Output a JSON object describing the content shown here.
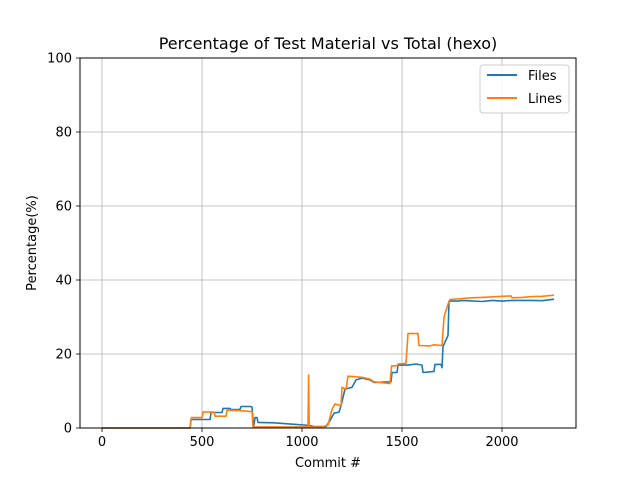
{
  "chart_data": {
    "type": "line",
    "title": "Percentage of Test Material vs Total (hexo)",
    "xlabel": "Commit #",
    "ylabel": "Percentage(%)",
    "xlim": [
      -110,
      2370
    ],
    "ylim": [
      0,
      100
    ],
    "xticks": [
      0,
      500,
      1000,
      1500,
      2000
    ],
    "yticks": [
      0,
      20,
      40,
      60,
      80,
      100
    ],
    "grid": true,
    "legend_position": "top-right",
    "series": [
      {
        "name": "Files",
        "color": "#1f77b4",
        "points": [
          [
            0,
            0
          ],
          [
            440,
            0
          ],
          [
            445,
            2.3
          ],
          [
            540,
            2.3
          ],
          [
            545,
            4.2
          ],
          [
            600,
            4.2
          ],
          [
            605,
            5.3
          ],
          [
            640,
            5.3
          ],
          [
            645,
            5.0
          ],
          [
            690,
            5.0
          ],
          [
            695,
            5.8
          ],
          [
            745,
            5.8
          ],
          [
            750,
            5.6
          ],
          [
            758,
            0.3
          ],
          [
            765,
            2.8
          ],
          [
            775,
            2.8
          ],
          [
            780,
            1.5
          ],
          [
            860,
            1.4
          ],
          [
            960,
            1.0
          ],
          [
            1010,
            0.8
          ],
          [
            1035,
            0.7
          ],
          [
            1060,
            0.4
          ],
          [
            1120,
            0.4
          ],
          [
            1140,
            2.0
          ],
          [
            1160,
            4.0
          ],
          [
            1185,
            4.3
          ],
          [
            1195,
            6.0
          ],
          [
            1215,
            10.5
          ],
          [
            1250,
            11.0
          ],
          [
            1260,
            12.0
          ],
          [
            1270,
            13.0
          ],
          [
            1300,
            13.5
          ],
          [
            1340,
            13.0
          ],
          [
            1360,
            12.3
          ],
          [
            1445,
            12.5
          ],
          [
            1450,
            15.0
          ],
          [
            1475,
            15.0
          ],
          [
            1480,
            17.0
          ],
          [
            1530,
            17.0
          ],
          [
            1570,
            17.3
          ],
          [
            1600,
            17.0
          ],
          [
            1605,
            15.0
          ],
          [
            1660,
            15.3
          ],
          [
            1665,
            17.2
          ],
          [
            1695,
            17.2
          ],
          [
            1700,
            16.3
          ],
          [
            1705,
            22.0
          ],
          [
            1730,
            25.0
          ],
          [
            1735,
            34.3
          ],
          [
            1780,
            34.3
          ],
          [
            1800,
            34.5
          ],
          [
            1900,
            34.2
          ],
          [
            1950,
            34.5
          ],
          [
            2000,
            34.3
          ],
          [
            2050,
            34.5
          ],
          [
            2150,
            34.5
          ],
          [
            2200,
            34.4
          ],
          [
            2260,
            34.8
          ]
        ]
      },
      {
        "name": "Lines",
        "color": "#ff7f0e",
        "points": [
          [
            0,
            0
          ],
          [
            440,
            0
          ],
          [
            447,
            2.8
          ],
          [
            500,
            2.8
          ],
          [
            505,
            4.3
          ],
          [
            560,
            4.3
          ],
          [
            565,
            3.2
          ],
          [
            620,
            3.2
          ],
          [
            625,
            4.8
          ],
          [
            690,
            4.7
          ],
          [
            750,
            4.4
          ],
          [
            755,
            0.3
          ],
          [
            860,
            0.3
          ],
          [
            960,
            0.3
          ],
          [
            1030,
            0.3
          ],
          [
            1033,
            14.3
          ],
          [
            1036,
            0.3
          ],
          [
            1100,
            0.3
          ],
          [
            1130,
            0.8
          ],
          [
            1150,
            5.0
          ],
          [
            1165,
            6.5
          ],
          [
            1195,
            6.0
          ],
          [
            1200,
            11.0
          ],
          [
            1220,
            10.5
          ],
          [
            1230,
            14.0
          ],
          [
            1300,
            13.7
          ],
          [
            1340,
            13.2
          ],
          [
            1360,
            12.5
          ],
          [
            1440,
            12.0
          ],
          [
            1448,
            16.8
          ],
          [
            1475,
            16.8
          ],
          [
            1480,
            17.3
          ],
          [
            1520,
            17.5
          ],
          [
            1530,
            25.5
          ],
          [
            1580,
            25.5
          ],
          [
            1585,
            22.3
          ],
          [
            1640,
            22.2
          ],
          [
            1660,
            22.5
          ],
          [
            1700,
            22.3
          ],
          [
            1710,
            30.0
          ],
          [
            1730,
            33.5
          ],
          [
            1740,
            34.7
          ],
          [
            1800,
            35.0
          ],
          [
            1850,
            35.2
          ],
          [
            1900,
            35.3
          ],
          [
            2000,
            35.6
          ],
          [
            2045,
            35.7
          ],
          [
            2050,
            35.2
          ],
          [
            2100,
            35.3
          ],
          [
            2150,
            35.5
          ],
          [
            2200,
            35.6
          ],
          [
            2260,
            35.9
          ]
        ]
      }
    ]
  }
}
